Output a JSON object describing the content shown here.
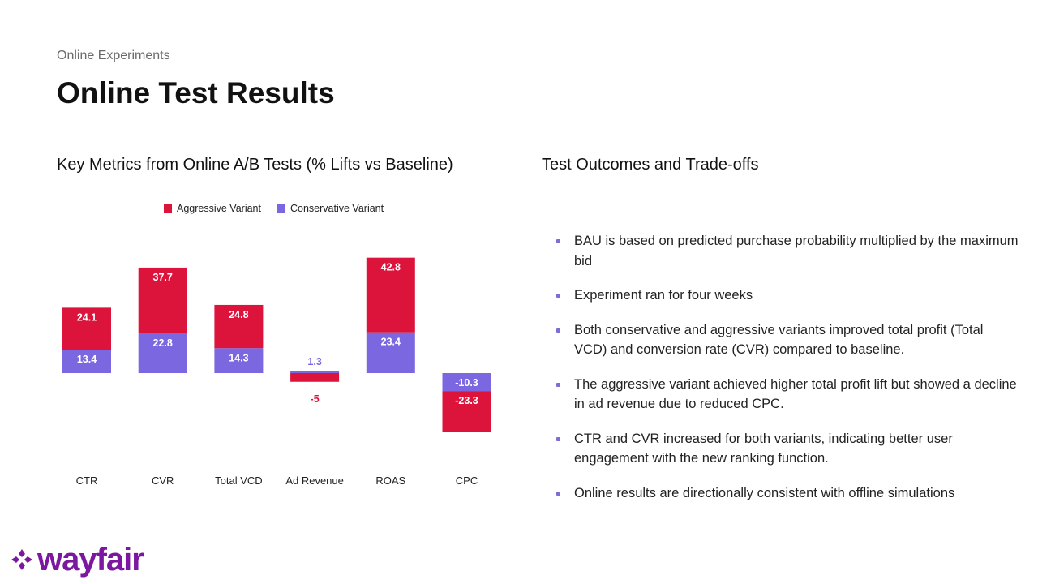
{
  "header": {
    "kicker": "Online Experiments",
    "title": "Online Test Results"
  },
  "chart_section_title": "Key Metrics from Online A/B Tests (% Lifts vs Baseline)",
  "outcomes": {
    "title": "Test Outcomes and Trade-offs",
    "items": [
      "BAU is  based on predicted purchase probability multiplied by the maximum bid",
      "Experiment ran for four weeks",
      "Both conservative and aggressive variants improved total profit (Total VCD) and conversion rate (CVR) compared to baseline.",
      "The aggressive variant achieved higher total profit lift but showed a decline in ad revenue due to reduced CPC.",
      "CTR and CVR increased for both variants, indicating better user engagement with the new ranking function.",
      "Online results are directionally consistent with offline simulations"
    ]
  },
  "chart_data": {
    "type": "bar",
    "stacked": true,
    "categories": [
      "CTR",
      "CVR",
      "Total VCD",
      "Ad Revenue",
      "ROAS",
      "CPC"
    ],
    "series": [
      {
        "name": "Aggressive Variant",
        "color": "#dc143c",
        "values": [
          24.1,
          37.7,
          24.8,
          -5,
          42.8,
          -23.3
        ]
      },
      {
        "name": "Conservative Variant",
        "color": "#7b68e0",
        "values": [
          13.4,
          22.8,
          14.3,
          1.3,
          23.4,
          -10.3
        ]
      }
    ],
    "legend_position": "top-center",
    "grid": false
  },
  "logo": {
    "text": "wayfair",
    "color": "#7b189f"
  }
}
